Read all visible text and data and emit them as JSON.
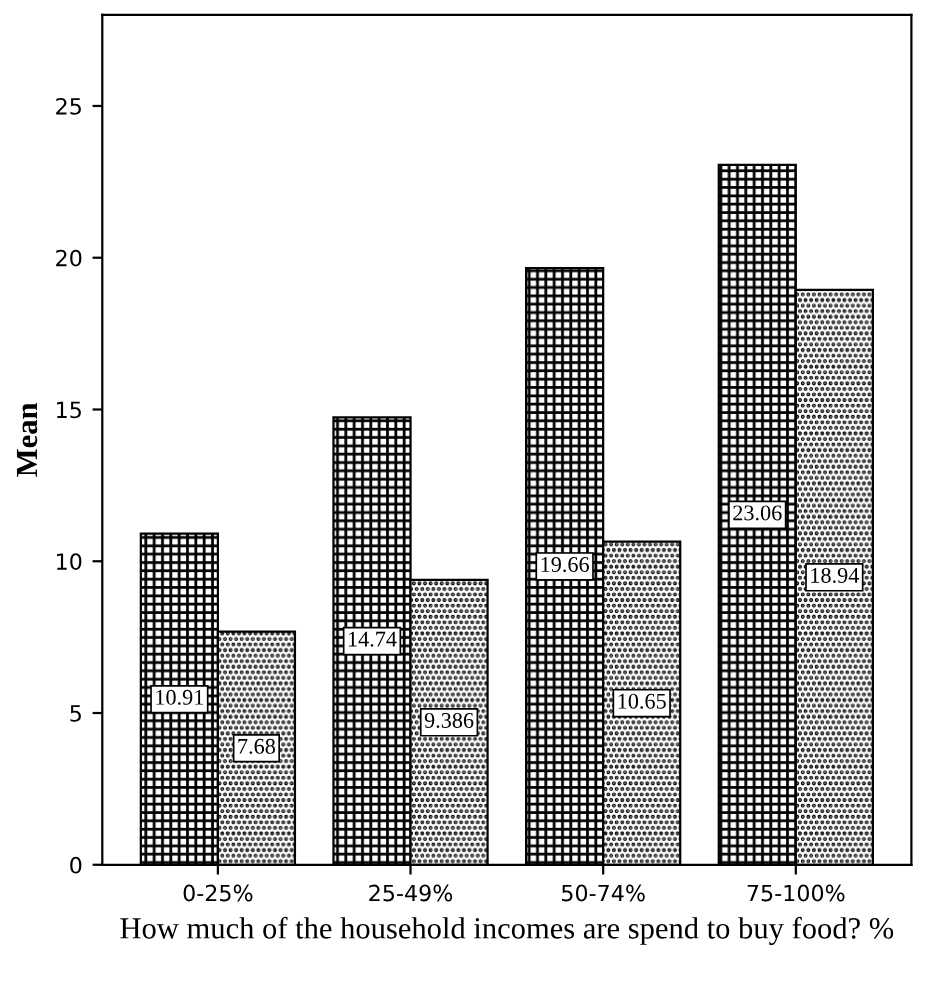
{
  "chart_data": {
    "type": "bar",
    "xlabel": "How much of the household incomes are spend to buy food? %",
    "ylabel": "Mean",
    "categories": [
      "0-25%",
      "25-49%",
      "50-74%",
      "75-100%"
    ],
    "series": [
      {
        "color": "#000000",
        "values": [
          10.91,
          14.74,
          19.66,
          23.06
        ]
      },
      {
        "color": "#000000",
        "values": [
          7.68,
          9.386,
          10.65,
          18.94
        ]
      }
    ],
    "ylim": [
      0,
      28
    ],
    "yticks": [
      0,
      5,
      10,
      15,
      20,
      25
    ],
    "grid": false,
    "legend": false,
    "data_labels": true
  }
}
